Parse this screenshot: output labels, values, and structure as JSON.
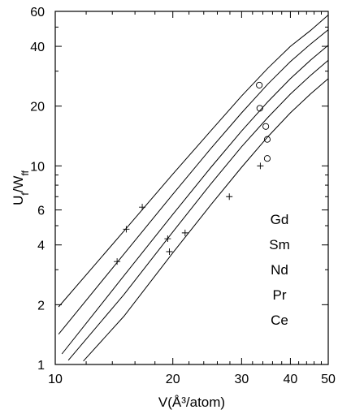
{
  "chart_data": {
    "type": "line",
    "xlabel": "V(Å³/atom)",
    "ylabel": "U_f/W_ff",
    "xscale": "log",
    "yscale": "log",
    "xlim": [
      10,
      50
    ],
    "ylim": [
      1,
      60
    ],
    "xticks": [
      10,
      20,
      30,
      40,
      50
    ],
    "yticks": [
      1,
      2,
      4,
      6,
      10,
      20,
      40,
      60
    ],
    "grid": false,
    "legend": {
      "placement": "right-inside",
      "entries": [
        "Gd",
        "Sm",
        "Nd",
        "Pr",
        "Ce"
      ]
    },
    "series": [
      {
        "name": "Gd",
        "x": [
          10.2,
          15,
          20,
          25,
          30,
          35,
          40,
          45,
          50
        ],
        "y": [
          1.95,
          4.7,
          9.1,
          15.0,
          22.5,
          31.0,
          40.0,
          48.0,
          57.5
        ],
        "markers": [
          {
            "symbol": "cross",
            "x": 15.2,
            "y": 4.8
          },
          {
            "symbol": "circle",
            "x": 33.3,
            "y": 25.5
          }
        ]
      },
      {
        "name": "Sm",
        "x": [
          10.2,
          15,
          20,
          25,
          30,
          35,
          40,
          45,
          50
        ],
        "y": [
          1.42,
          3.6,
          7.2,
          12.2,
          18.5,
          25.8,
          33.5,
          41.0,
          48.5
        ],
        "markers": [
          {
            "symbol": "cross",
            "x": 16.7,
            "y": 6.2
          },
          {
            "symbol": "circle",
            "x": 33.4,
            "y": 19.5
          }
        ]
      },
      {
        "name": "Nd",
        "x": [
          10.4,
          15,
          20,
          25,
          30,
          35,
          40,
          45,
          50
        ],
        "y": [
          1.13,
          2.8,
          5.7,
          9.8,
          15.0,
          21.0,
          27.5,
          34.0,
          40.5
        ],
        "markers": [
          {
            "symbol": "cross",
            "x": 14.4,
            "y": 3.3
          },
          {
            "symbol": "cross",
            "x": 19.4,
            "y": 4.3
          },
          {
            "symbol": "circle",
            "x": 34.6,
            "y": 15.8
          }
        ]
      },
      {
        "name": "Pr",
        "x": [
          10.8,
          15,
          20,
          25,
          30,
          35,
          40,
          45,
          50
        ],
        "y": [
          1.05,
          2.25,
          4.65,
          8.1,
          12.5,
          17.5,
          23.0,
          28.5,
          34.0
        ],
        "markers": [
          {
            "symbol": "cross",
            "x": 19.6,
            "y": 3.7
          },
          {
            "symbol": "circle",
            "x": 34.9,
            "y": 13.6
          }
        ]
      },
      {
        "name": "Ce",
        "x": [
          11.8,
          15,
          20,
          25,
          30,
          35,
          40,
          45,
          50
        ],
        "y": [
          1.04,
          1.75,
          3.65,
          6.35,
          9.85,
          14.0,
          18.5,
          23.0,
          27.5
        ],
        "markers": [
          {
            "symbol": "cross",
            "x": 21.5,
            "y": 4.6
          },
          {
            "symbol": "cross",
            "x": 27.9,
            "y": 7.0
          },
          {
            "symbol": "cross",
            "x": 33.5,
            "y": 10.0
          },
          {
            "symbol": "circle",
            "x": 34.9,
            "y": 10.9
          }
        ]
      }
    ]
  }
}
